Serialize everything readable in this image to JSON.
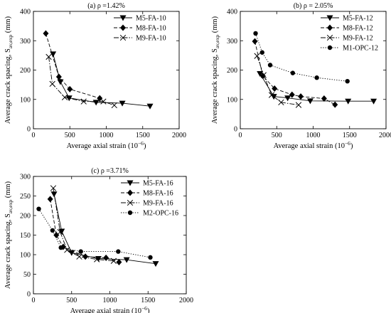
{
  "chart_data": [
    {
      "type": "line",
      "title": "(a) ρ =1.42%",
      "xlabel": "Average axial strain (10",
      "xlabel_sup": "−6",
      "xlabel_end": ")",
      "ylabel": "Average crack spacing, S",
      "ylabel_sub": "av,exp",
      "ylabel_unit": " (mm)",
      "xlim": [
        0,
        2000
      ],
      "ylim": [
        0,
        400
      ],
      "xticks": [
        "0",
        "500",
        "1000",
        "1500",
        "2000"
      ],
      "yticks": [
        "0",
        "100",
        "200",
        "300",
        "400"
      ],
      "grid": false,
      "legend_position": "top-right",
      "series": [
        {
          "name": "M5-FA-10",
          "marker": "triangle-down",
          "dash": "solid",
          "x": [
            270,
            370,
            490,
            860,
            1220,
            1600
          ],
          "y": [
            255,
            160,
            105,
            90,
            87,
            77
          ]
        },
        {
          "name": "M8-FA-10",
          "marker": "diamond",
          "dash": "dashed",
          "x": [
            170,
            350,
            500,
            910
          ],
          "y": [
            325,
            177,
            135,
            104
          ]
        },
        {
          "name": "M9-FA-10",
          "marker": "cross",
          "dash": "dashdot",
          "x": [
            210,
            260,
            430,
            690,
            960,
            1110
          ],
          "y": [
            245,
            153,
            107,
            93,
            93,
            80
          ]
        }
      ]
    },
    {
      "type": "line",
      "title": "(b) ρ = 2.05%",
      "xlabel": "Average axial strain (10",
      "xlabel_sup": "−6",
      "xlabel_end": ")",
      "ylabel": "Average crack spacing, S",
      "ylabel_sub": "av,exp",
      "ylabel_unit": " (mm)",
      "xlim": [
        0,
        2000
      ],
      "ylim": [
        0,
        400
      ],
      "xticks": [
        "0",
        "500",
        "1000",
        "1500",
        "2000"
      ],
      "yticks": [
        "0",
        "100",
        "200",
        "300",
        "400"
      ],
      "grid": false,
      "legend_position": "top-right",
      "series": [
        {
          "name": "M5-FA-12",
          "marker": "triangle-down",
          "dash": "solid",
          "x": [
            270,
            460,
            650,
            960,
            1480,
            1830
          ],
          "y": [
            188,
            110,
            105,
            95,
            94,
            94
          ]
        },
        {
          "name": "M8-FA-12",
          "marker": "diamond",
          "dash": "dashed",
          "x": [
            200,
            310,
            470,
            710,
            830,
            1150,
            1300
          ],
          "y": [
            298,
            180,
            137,
            116,
            110,
            103,
            82
          ]
        },
        {
          "name": "M9-FA-12",
          "marker": "cross",
          "dash": "dashdot",
          "x": [
            230,
            320,
            430,
            560,
            800
          ],
          "y": [
            248,
            183,
            115,
            90,
            81
          ]
        },
        {
          "name": "M1-OPC-12",
          "marker": "circle",
          "dash": "dotted",
          "x": [
            210,
            300,
            410,
            720,
            1050,
            1470
          ],
          "y": [
            325,
            260,
            217,
            190,
            174,
            162
          ]
        }
      ]
    },
    {
      "type": "line",
      "title": "(c) ρ =3.71%",
      "xlabel": "Average axial strain (10",
      "xlabel_sup": "−6",
      "xlabel_end": ")",
      "ylabel": "Average crack spacing, S",
      "ylabel_sub": "av,exp",
      "ylabel_unit": " (mm)",
      "xlim": [
        0,
        2000
      ],
      "ylim": [
        0,
        300
      ],
      "xticks": [
        "0",
        "500",
        "1000",
        "1500",
        "2000"
      ],
      "yticks": [
        "0",
        "50",
        "100",
        "150",
        "200",
        "250",
        "300"
      ],
      "grid": false,
      "legend_position": "top-right",
      "series": [
        {
          "name": "M5-FA-16",
          "marker": "triangle-down",
          "dash": "solid",
          "x": [
            270,
            370,
            500,
            850,
            1220,
            1600
          ],
          "y": [
            255,
            160,
            105,
            90,
            87,
            77
          ]
        },
        {
          "name": "M8-FA-16",
          "marker": "diamond",
          "dash": "dashed",
          "x": [
            220,
            300,
            390,
            680,
            950,
            1120
          ],
          "y": [
            242,
            150,
            120,
            95,
            92,
            81
          ]
        },
        {
          "name": "M9-FA-16",
          "marker": "cross",
          "dash": "dashdot",
          "x": [
            260,
            350,
            440,
            600,
            830,
            1050
          ],
          "y": [
            270,
            158,
            112,
            95,
            88,
            84
          ]
        },
        {
          "name": "M2-OPC-16",
          "marker": "circle",
          "dash": "dotted",
          "x": [
            70,
            250,
            360,
            620,
            1110,
            1530
          ],
          "y": [
            217,
            162,
            118,
            108,
            108,
            93
          ]
        }
      ]
    }
  ]
}
